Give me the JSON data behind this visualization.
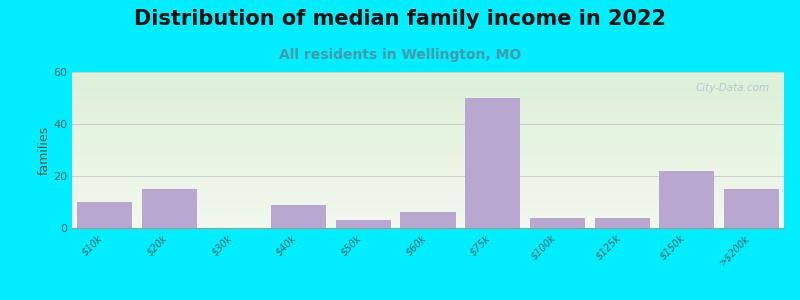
{
  "title": "Distribution of median family income in 2022",
  "subtitle": "All residents in Wellington, MO",
  "categories": [
    "$10k",
    "$20k",
    "$30k",
    "$40k",
    "$50k",
    "$60k",
    "$75k",
    "$100k",
    "$125k",
    "$150k",
    ">$200k"
  ],
  "values": [
    10,
    15,
    0,
    9,
    3,
    6,
    50,
    4,
    4,
    22,
    15
  ],
  "bar_color": "#b8a8d0",
  "ylabel": "families",
  "ylim": [
    0,
    60
  ],
  "yticks": [
    0,
    20,
    40,
    60
  ],
  "background_color": "#00eeff",
  "title_fontsize": 15,
  "title_color": "#111111",
  "subtitle_fontsize": 10,
  "subtitle_color": "#4499aa",
  "watermark": "City-Data.com",
  "grid_color": "#cccccc",
  "tick_color": "#336666",
  "tick_fontsize": 7
}
